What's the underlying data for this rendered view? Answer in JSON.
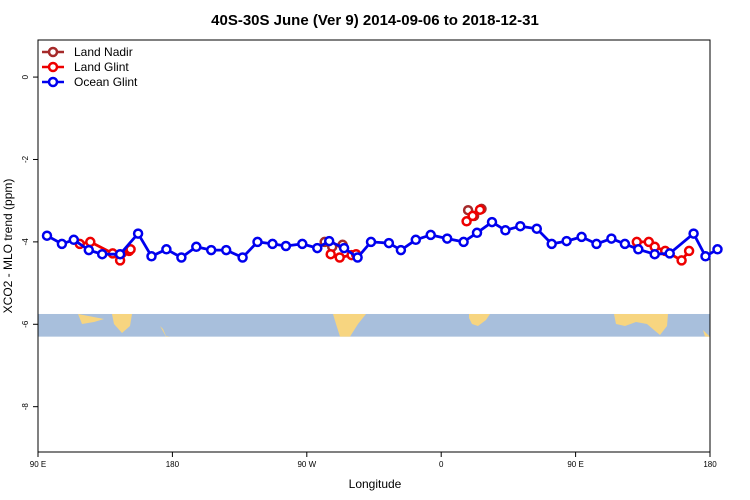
{
  "chart_data": {
    "type": "line",
    "title": "40S-30S June (Ver 9)   2014-09-06 to 2018-12-31",
    "xlabel": "Longitude",
    "ylabel": "XCO2 - MLO trend (ppm)",
    "xlim": [
      90,
      540
    ],
    "ylim": [
      -9.1,
      0.9
    ],
    "xticks": [
      {
        "value": 90,
        "label": "90 E"
      },
      {
        "value": 180,
        "label": "180"
      },
      {
        "value": 270,
        "label": "90 W"
      },
      {
        "value": 360,
        "label": "0"
      },
      {
        "value": 450,
        "label": "90 E"
      },
      {
        "value": 540,
        "label": "180"
      }
    ],
    "yticks": [
      0,
      -2,
      -4,
      -6,
      -8
    ],
    "map_band": {
      "ymin": -6.3,
      "ymax": -5.75,
      "ocean_color": "#a8bfdc",
      "land_color": "#f7d580"
    },
    "legend": {
      "position": "top-left"
    },
    "series": [
      {
        "name": "Land Nadir",
        "color": "#a52a2a",
        "segments": [
          [
            [
              282,
              -4.0
            ],
            [
              287,
              -4.12
            ],
            [
              294,
              -4.07
            ]
          ],
          [
            [
              378,
              -3.23
            ],
            [
              382,
              -3.37
            ],
            [
              387,
              -3.2
            ]
          ]
        ]
      },
      {
        "name": "Land Glint",
        "color": "#ee0000",
        "segments": [
          [
            [
              118,
              -4.05
            ],
            [
              125,
              -4.0
            ],
            [
              140,
              -4.28
            ],
            [
              145,
              -4.45
            ],
            [
              151,
              -4.22
            ],
            [
              152,
              -4.18
            ]
          ],
          [
            [
              286,
              -4.3
            ],
            [
              292,
              -4.38
            ],
            [
              300,
              -4.32
            ],
            [
              303,
              -4.3
            ]
          ],
          [
            [
              377,
              -3.5
            ],
            [
              381,
              -3.37
            ],
            [
              386,
              -3.22
            ]
          ],
          [
            [
              491,
              -4.0
            ],
            [
              499,
              -4.0
            ],
            [
              503,
              -4.12
            ],
            [
              510,
              -4.22
            ],
            [
              521,
              -4.45
            ],
            [
              526,
              -4.22
            ]
          ]
        ]
      },
      {
        "name": "Ocean Glint",
        "color": "#0000ee",
        "segments": [
          [
            [
              96,
              -3.85
            ],
            [
              106,
              -4.05
            ],
            [
              114,
              -3.95
            ],
            [
              124,
              -4.2
            ],
            [
              133,
              -4.3
            ],
            [
              145,
              -4.3
            ],
            [
              157,
              -3.8
            ],
            [
              166,
              -4.35
            ],
            [
              176,
              -4.18
            ],
            [
              186,
              -4.38
            ],
            [
              196,
              -4.12
            ],
            [
              206,
              -4.2
            ],
            [
              216,
              -4.2
            ],
            [
              227,
              -4.38
            ],
            [
              237,
              -4.0
            ],
            [
              247,
              -4.05
            ],
            [
              256,
              -4.1
            ],
            [
              267,
              -4.05
            ],
            [
              277,
              -4.15
            ],
            [
              285,
              -3.98
            ],
            [
              295,
              -4.15
            ],
            [
              304,
              -4.38
            ],
            [
              313,
              -4.0
            ],
            [
              325,
              -4.03
            ],
            [
              333,
              -4.2
            ],
            [
              343,
              -3.95
            ],
            [
              353,
              -3.83
            ],
            [
              364,
              -3.92
            ],
            [
              375,
              -4.0
            ],
            [
              384,
              -3.78
            ],
            [
              394,
              -3.52
            ],
            [
              403,
              -3.72
            ],
            [
              413,
              -3.62
            ],
            [
              424,
              -3.68
            ],
            [
              434,
              -4.05
            ],
            [
              444,
              -3.98
            ],
            [
              454,
              -3.88
            ],
            [
              464,
              -4.05
            ],
            [
              474,
              -3.92
            ],
            [
              483,
              -4.05
            ],
            [
              492,
              -4.18
            ],
            [
              503,
              -4.3
            ],
            [
              513,
              -4.28
            ],
            [
              529,
              -3.8
            ],
            [
              537,
              -4.35
            ],
            [
              545,
              -4.18
            ]
          ]
        ]
      }
    ]
  }
}
